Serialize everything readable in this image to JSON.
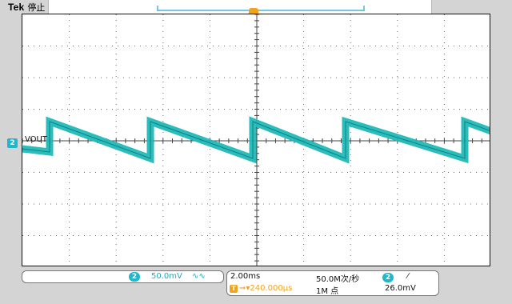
{
  "header": {
    "brand": "Tek",
    "status": "停止"
  },
  "trace": {
    "channel": "2",
    "label": "VOUT",
    "color": "#20b8b8"
  },
  "trigger_marker": "T",
  "channel_panel": {
    "channel": "2",
    "scale": "50.0mV",
    "coupling_symbol": "∿∿"
  },
  "timebase_panel": {
    "time_div": "2.00ms",
    "trigger_position": "➞▾240.000µs",
    "trigger_badge": "T",
    "sample_rate": "50.0M次/秒",
    "record_length": "1M 点",
    "trigger_channel": "2",
    "trigger_slope_symbol": "⁄",
    "trigger_level": "26.0mV"
  },
  "colors": {
    "channel2": "#1fb7cc",
    "trigger": "#f2a31c",
    "grid": "#6b6b6b"
  }
}
